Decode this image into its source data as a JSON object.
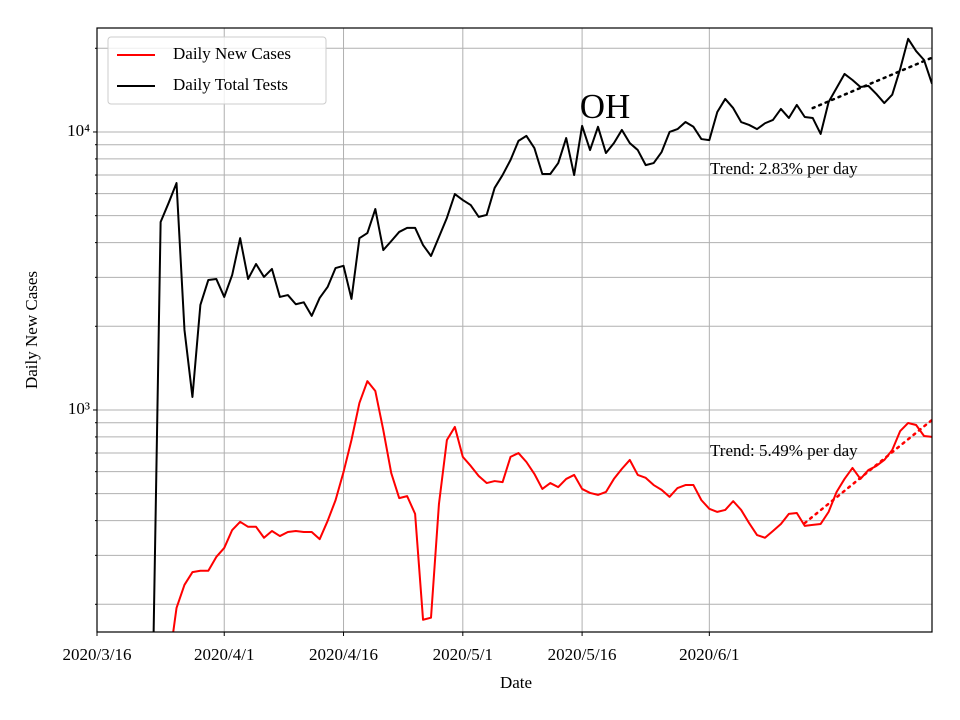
{
  "chart_data": {
    "type": "line",
    "title": "OH",
    "xlabel": "Date",
    "ylabel": "Daily New Cases",
    "log_y": true,
    "grid": true,
    "legend": "upper left",
    "xlim": [
      "2020-03-16",
      "2020-06-29"
    ],
    "xticks": [
      {
        "value": "2020-03-16",
        "label": "2020/3/16"
      },
      {
        "value": "2020-04-01",
        "label": "2020/4/1"
      },
      {
        "value": "2020-04-16",
        "label": "2020/4/16"
      },
      {
        "value": "2020-05-01",
        "label": "2020/5/1"
      },
      {
        "value": "2020-05-16",
        "label": "2020/5/16"
      },
      {
        "value": "2020-06-01",
        "label": "2020/6/1"
      }
    ],
    "ylim": [
      159,
      23660
    ],
    "yticks": [
      {
        "value": 1000,
        "label": "10³"
      },
      {
        "value": 10000,
        "label": "10⁴"
      }
    ],
    "yminor_ticks": [
      200,
      300,
      400,
      500,
      600,
      700,
      800,
      900,
      2000,
      3000,
      4000,
      5000,
      6000,
      7000,
      8000,
      9000,
      20000
    ],
    "x": [
      "2020-03-23",
      "2020-03-24",
      "2020-03-25",
      "2020-03-26",
      "2020-03-27",
      "2020-03-28",
      "2020-03-29",
      "2020-03-30",
      "2020-03-31",
      "2020-04-01",
      "2020-04-02",
      "2020-04-03",
      "2020-04-04",
      "2020-04-05",
      "2020-04-06",
      "2020-04-07",
      "2020-04-08",
      "2020-04-09",
      "2020-04-10",
      "2020-04-11",
      "2020-04-12",
      "2020-04-13",
      "2020-04-14",
      "2020-04-15",
      "2020-04-16",
      "2020-04-17",
      "2020-04-18",
      "2020-04-19",
      "2020-04-20",
      "2020-04-21",
      "2020-04-22",
      "2020-04-23",
      "2020-04-24",
      "2020-04-25",
      "2020-04-26",
      "2020-04-27",
      "2020-04-28",
      "2020-04-29",
      "2020-04-30",
      "2020-05-01",
      "2020-05-02",
      "2020-05-03",
      "2020-05-04",
      "2020-05-05",
      "2020-05-06",
      "2020-05-07",
      "2020-05-08",
      "2020-05-09",
      "2020-05-10",
      "2020-05-11",
      "2020-05-12",
      "2020-05-13",
      "2020-05-14",
      "2020-05-15",
      "2020-05-16",
      "2020-05-17",
      "2020-05-18",
      "2020-05-19",
      "2020-05-20",
      "2020-05-21",
      "2020-05-22",
      "2020-05-23",
      "2020-05-24",
      "2020-05-25",
      "2020-05-26",
      "2020-05-27",
      "2020-05-28",
      "2020-05-29",
      "2020-05-30",
      "2020-05-31",
      "2020-06-01",
      "2020-06-02",
      "2020-06-03",
      "2020-06-04",
      "2020-06-05",
      "2020-06-06",
      "2020-06-07",
      "2020-06-08",
      "2020-06-09",
      "2020-06-10",
      "2020-06-11",
      "2020-06-12",
      "2020-06-13",
      "2020-06-14",
      "2020-06-15",
      "2020-06-16",
      "2020-06-17",
      "2020-06-18",
      "2020-06-19",
      "2020-06-20",
      "2020-06-21",
      "2020-06-22",
      "2020-06-23",
      "2020-06-24",
      "2020-06-25",
      "2020-06-26",
      "2020-06-27",
      "2020-06-28",
      "2020-06-29"
    ],
    "series": [
      {
        "name": "Daily New Cases",
        "color": "#ff0000",
        "values": [
          null,
          null,
          120,
          194,
          235,
          261,
          264,
          264,
          296,
          319,
          370,
          396,
          380,
          380,
          347,
          367,
          352,
          364,
          367,
          364,
          364,
          343,
          399,
          474,
          598,
          780,
          1060,
          1270,
          1170,
          847,
          593,
          482,
          490,
          423,
          176,
          179,
          459,
          780,
          869,
          678,
          629,
          579,
          546,
          555,
          550,
          678,
          700,
          650,
          589,
          520,
          546,
          528,
          565,
          584,
          520,
          503,
          495,
          507,
          565,
          614,
          661,
          584,
          570,
          537,
          516,
          487,
          524,
          537,
          537,
          474,
          441,
          430,
          437,
          470,
          437,
          392,
          355,
          347,
          367,
          389,
          423,
          426,
          383,
          386,
          389,
          430,
          507,
          565,
          619,
          565,
          608,
          629,
          661,
          718,
          840,
          898,
          883,
          806,
          800
        ]
      },
      {
        "name": "Daily Total Tests",
        "color": "#000000",
        "values": [
          100,
          4745,
          5550,
          6550,
          1940,
          1114,
          2387,
          2935,
          2960,
          2550,
          3060,
          4150,
          2960,
          3350,
          3010,
          3215,
          2550,
          2590,
          2400,
          2440,
          2180,
          2530,
          2770,
          3240,
          3300,
          2510,
          4150,
          4330,
          5280,
          3760,
          4050,
          4370,
          4520,
          4520,
          3920,
          3580,
          4190,
          4910,
          5980,
          5690,
          5460,
          4950,
          5030,
          6290,
          7000,
          7930,
          9290,
          9680,
          8750,
          7060,
          7060,
          7730,
          9510,
          7000,
          10520,
          8610,
          10440,
          8400,
          9120,
          10170,
          9120,
          8610,
          7600,
          7730,
          8470,
          10000,
          10240,
          10860,
          10440,
          9430,
          9350,
          11800,
          13150,
          12190,
          10860,
          10600,
          10240,
          10750,
          11050,
          12100,
          11230,
          12510,
          11320,
          11230,
          9840,
          12820,
          14390,
          16170,
          15380,
          14520,
          14650,
          13700,
          12710,
          13620,
          16850,
          21630,
          19550,
          18150,
          14900
        ]
      }
    ],
    "trends": [
      {
        "label": "Trend: 2.83% per day",
        "color": "#000000",
        "x": [
          "2020-06-14",
          "2020-06-29"
        ],
        "values": [
          12190,
          18500
        ]
      },
      {
        "label": "Trend: 5.49% per day",
        "color": "#ff0000",
        "x": [
          "2020-06-13",
          "2020-06-29"
        ],
        "values": [
          392,
          921
        ]
      }
    ]
  }
}
